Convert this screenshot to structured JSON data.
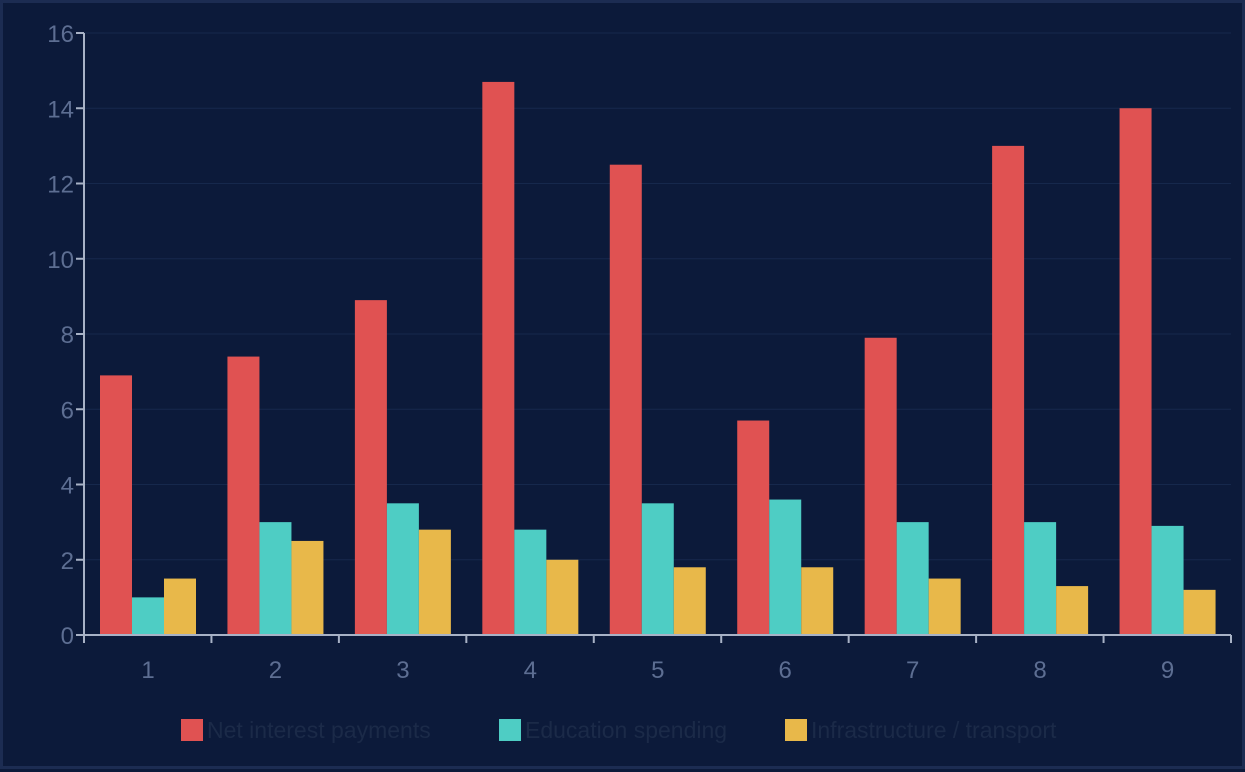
{
  "chart_data": {
    "type": "bar",
    "categories": [
      "1",
      "2",
      "3",
      "4",
      "5",
      "6",
      "7",
      "8",
      "9"
    ],
    "series": [
      {
        "name": "Net interest payments",
        "color": "#e05252",
        "values": [
          6.9,
          7.4,
          8.9,
          14.7,
          12.5,
          5.7,
          7.9,
          13.0,
          14.0
        ]
      },
      {
        "name": "Education spending",
        "color": "#4ecdc4",
        "values": [
          1.0,
          3.0,
          3.5,
          2.8,
          3.5,
          3.6,
          3.0,
          3.0,
          2.9
        ]
      },
      {
        "name": "Infrastructure / transport",
        "color": "#e8b84a",
        "values": [
          1.5,
          2.5,
          2.8,
          2.0,
          1.8,
          1.8,
          1.5,
          1.3,
          1.2
        ]
      }
    ],
    "title": "",
    "xlabel": "",
    "ylabel": "",
    "ylim": [
      0,
      16
    ],
    "yticks": [
      "0",
      "2",
      "4",
      "6",
      "8",
      "10",
      "12",
      "14",
      "16"
    ],
    "grid": true,
    "legend_position": "bottom-center",
    "colors": {
      "background": "#0c1a3a",
      "axis": "#a8b2c6",
      "tick_text": "#5d6e92",
      "gridline": "#16284c"
    }
  }
}
